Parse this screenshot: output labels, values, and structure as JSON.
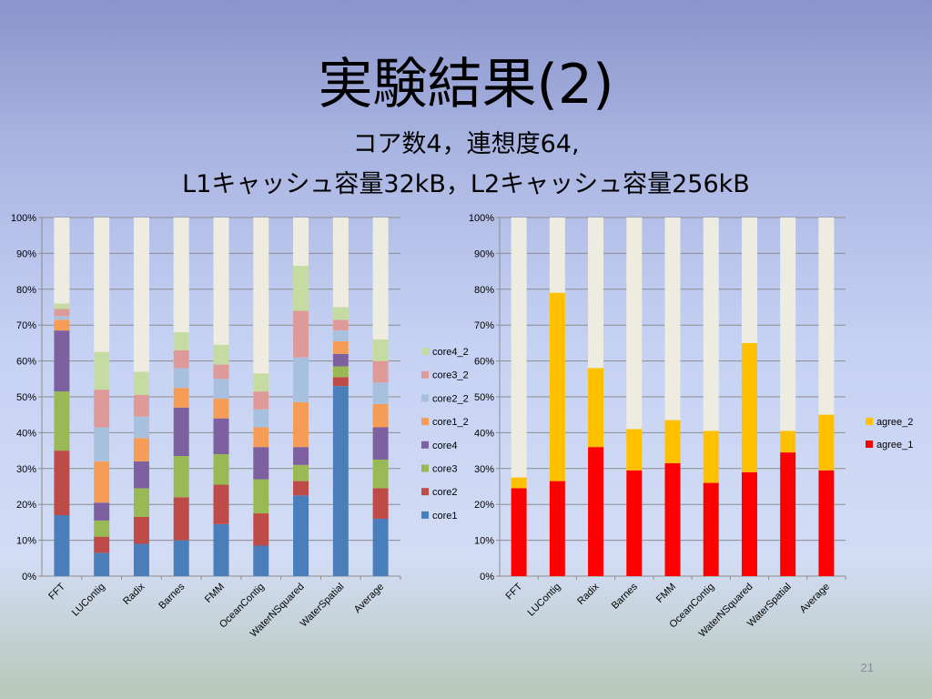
{
  "slide": {
    "title": "実験結果(2)",
    "subtitle_line1": "コア数4，連想度64,",
    "subtitle_line2": "L1キャッシュ容量32kB，L2キャッシュ容量256kB",
    "page_number": "21"
  },
  "colors": {
    "core1": "#4a7ebb",
    "core2": "#be4b48",
    "core3": "#98b954",
    "core4": "#7d60a0",
    "core1_2": "#f59d56",
    "core2_2": "#a7c0de",
    "core3_2": "#de9a99",
    "core4_2": "#c5dba2",
    "remainder": "#eeece1",
    "agree_1": "#ff0000",
    "agree_2": "#ffc000"
  },
  "chart_data": [
    {
      "type": "bar",
      "stacked": true,
      "categories": [
        "FFT",
        "LUContig",
        "Radix",
        "Barnes",
        "FMM",
        "OceanContig",
        "WaterNSquared",
        "WaterSpatial",
        "Average"
      ],
      "y_ticks": [
        "0%",
        "10%",
        "20%",
        "30%",
        "40%",
        "50%",
        "60%",
        "70%",
        "80%",
        "90%",
        "100%"
      ],
      "ylim": [
        0,
        100
      ],
      "grid": true,
      "legend_position": "right",
      "series": [
        {
          "name": "core1",
          "values": [
            17,
            6.5,
            9,
            10,
            14.5,
            8.5,
            22.5,
            53,
            16
          ]
        },
        {
          "name": "core2",
          "values": [
            18,
            4.5,
            7.5,
            12,
            11,
            9,
            4,
            2.5,
            8.5
          ]
        },
        {
          "name": "core3",
          "values": [
            16.5,
            4.5,
            8,
            11.5,
            8.5,
            9.5,
            4.5,
            3,
            8
          ]
        },
        {
          "name": "core4",
          "values": [
            17,
            5,
            7.5,
            13.5,
            10,
            9,
            5,
            3.5,
            9
          ]
        },
        {
          "name": "core1_2",
          "values": [
            3,
            11.5,
            6.5,
            5.5,
            5.5,
            5.5,
            12.5,
            3.5,
            6.5
          ]
        },
        {
          "name": "core2_2",
          "values": [
            1,
            9.5,
            6,
            5.5,
            5.5,
            5,
            12.5,
            3,
            6
          ]
        },
        {
          "name": "core3_2",
          "values": [
            2,
            10.5,
            6,
            5,
            4,
            5,
            13,
            3,
            6
          ]
        },
        {
          "name": "core4_2",
          "values": [
            1.5,
            10.5,
            6.5,
            5,
            5.5,
            5,
            12.5,
            3.5,
            6
          ]
        }
      ]
    },
    {
      "type": "bar",
      "stacked": true,
      "categories": [
        "FFT",
        "LUContig",
        "Radix",
        "Barnes",
        "FMM",
        "OceanContig",
        "WaterNSquared",
        "WaterSpatial",
        "Average"
      ],
      "y_ticks": [
        "0%",
        "10%",
        "20%",
        "30%",
        "40%",
        "50%",
        "60%",
        "70%",
        "80%",
        "90%",
        "100%"
      ],
      "ylim": [
        0,
        100
      ],
      "grid": true,
      "legend_position": "right",
      "series": [
        {
          "name": "agree_1",
          "values": [
            24.5,
            26.5,
            36,
            29.5,
            31.5,
            26,
            29,
            34.5,
            29.5
          ]
        },
        {
          "name": "agree_2",
          "values": [
            3,
            52.5,
            22,
            11.5,
            12,
            14.5,
            36,
            6,
            15.5
          ]
        }
      ]
    }
  ]
}
